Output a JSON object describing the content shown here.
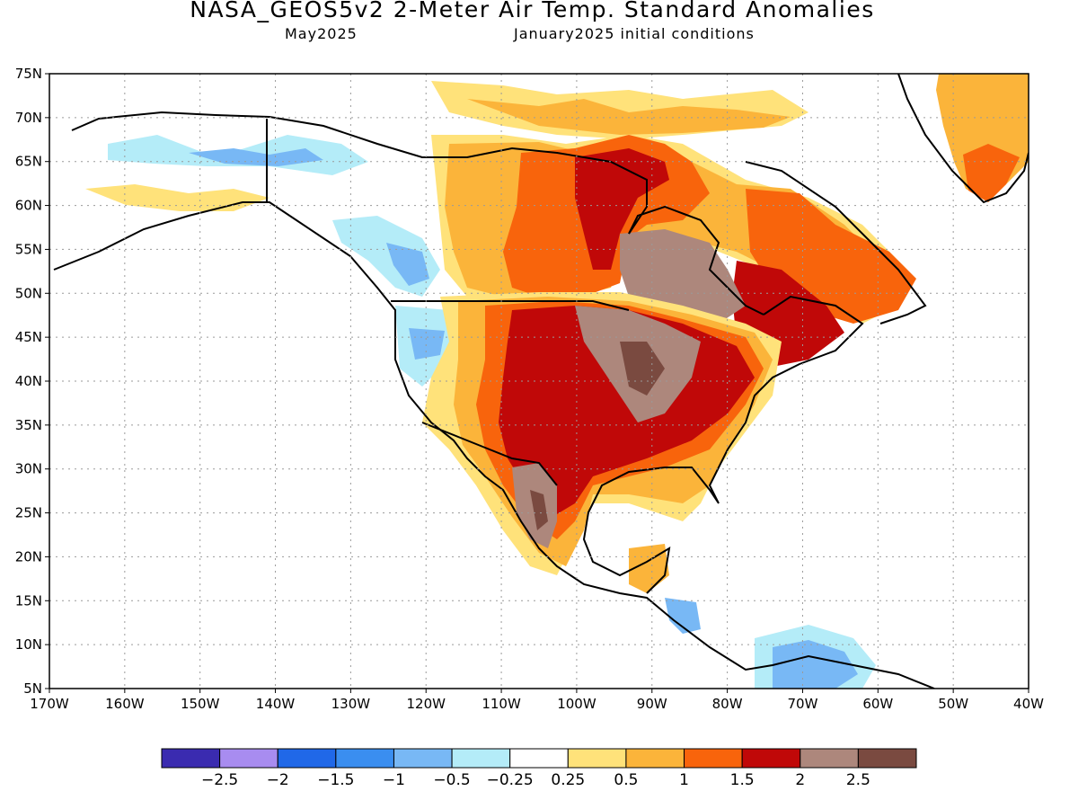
{
  "title": "NASA_GEOS5v2 2-Meter Air Temp. Standard Anomalies",
  "subtitle_left": "May2025",
  "subtitle_right": "January2025 initial conditions",
  "map": {
    "lat_labels": [
      "75N",
      "70N",
      "65N",
      "60N",
      "55N",
      "50N",
      "45N",
      "40N",
      "35N",
      "30N",
      "25N",
      "20N",
      "15N",
      "10N",
      "5N"
    ],
    "lon_labels": [
      "170W",
      "160W",
      "150W",
      "140W",
      "130W",
      "120W",
      "110W",
      "100W",
      "90W",
      "80W",
      "70W",
      "60W",
      "50W",
      "40W"
    ],
    "lon_range": [
      -170,
      -40
    ],
    "lat_range": [
      5,
      75
    ],
    "grid": true
  },
  "colorbar": {
    "colors": [
      "#3a2bb0",
      "#a88cf0",
      "#2068e8",
      "#3a8ef0",
      "#78b8f5",
      "#b4ecf8",
      "#ffffff",
      "#ffe27a",
      "#fbb43a",
      "#f8640c",
      "#c00808",
      "#ad877c",
      "#7a4a40"
    ],
    "labels": [
      "−2.5",
      "−2",
      "−1.5",
      "−1",
      "−0.5",
      "−0.25",
      "0.25",
      "0.5",
      "1",
      "1.5",
      "2",
      "2.5"
    ]
  }
}
